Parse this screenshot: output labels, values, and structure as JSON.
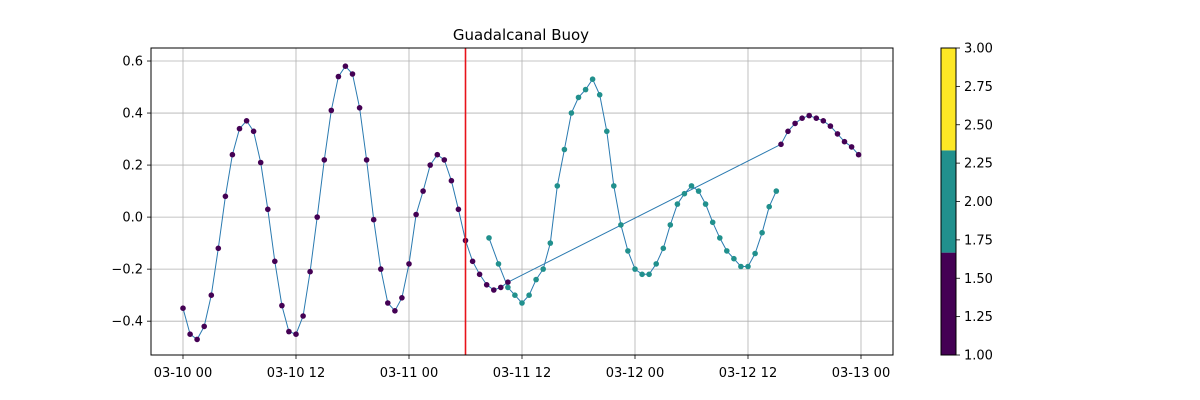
{
  "chart_data": {
    "type": "scatter",
    "title": "Guadalcanal Buoy",
    "xlabel": "",
    "ylabel": "",
    "x_range": [
      "2025-03-10T00:00",
      "2025-03-13T00:00"
    ],
    "x_ticks": [
      {
        "value": "2025-03-10T00:00",
        "label": "03-10 00"
      },
      {
        "value": "2025-03-10T12:00",
        "label": "03-10 12"
      },
      {
        "value": "2025-03-11T00:00",
        "label": "03-11 00"
      },
      {
        "value": "2025-03-11T12:00",
        "label": "03-11 12"
      },
      {
        "value": "2025-03-12T00:00",
        "label": "03-12 00"
      },
      {
        "value": "2025-03-12T12:00",
        "label": "03-12 12"
      },
      {
        "value": "2025-03-13T00:00",
        "label": "03-13 00"
      }
    ],
    "ylim": [
      -0.53,
      0.65
    ],
    "y_ticks": [
      -0.4,
      -0.2,
      0.0,
      0.2,
      0.4,
      0.6
    ],
    "y_tick_labels": [
      "−0.4",
      "−0.2",
      "0.0",
      "0.2",
      "0.4",
      "0.6"
    ],
    "grid": true,
    "vertical_line": {
      "x": "2025-03-11T06:00",
      "color": "#e8131a"
    },
    "line_color": "#2a7ab0",
    "colorbar": {
      "range": [
        1.0,
        3.0
      ],
      "ticks": [
        1.0,
        1.25,
        1.5,
        1.75,
        2.0,
        2.25,
        2.5,
        2.75,
        3.0
      ],
      "tick_labels": [
        "1.00",
        "1.25",
        "1.50",
        "1.75",
        "2.00",
        "2.25",
        "2.50",
        "2.75",
        "3.00"
      ],
      "bands": [
        {
          "from": 1.0,
          "to": 1.667,
          "color": "#440154"
        },
        {
          "from": 1.667,
          "to": 2.333,
          "color": "#21908d"
        },
        {
          "from": 2.333,
          "to": 3.0,
          "color": "#fde725"
        }
      ]
    },
    "series": [
      {
        "x": [
          "2025-03-10T00:00",
          "2025-03-10T00:45",
          "2025-03-10T01:30",
          "2025-03-10T02:15",
          "2025-03-10T03:00",
          "2025-03-10T03:45",
          "2025-03-10T04:30",
          "2025-03-10T05:15",
          "2025-03-10T06:00",
          "2025-03-10T06:45",
          "2025-03-10T07:30",
          "2025-03-10T08:15",
          "2025-03-10T09:00",
          "2025-03-10T09:45",
          "2025-03-10T10:30",
          "2025-03-10T11:15",
          "2025-03-10T12:00",
          "2025-03-10T12:45",
          "2025-03-10T13:30",
          "2025-03-10T14:15",
          "2025-03-10T15:00",
          "2025-03-10T15:45",
          "2025-03-10T16:30",
          "2025-03-10T17:15",
          "2025-03-10T18:00",
          "2025-03-10T18:45",
          "2025-03-10T19:30",
          "2025-03-10T20:15",
          "2025-03-10T21:00",
          "2025-03-10T21:45",
          "2025-03-10T22:30",
          "2025-03-10T23:15",
          "2025-03-11T00:00",
          "2025-03-11T00:45",
          "2025-03-11T01:30",
          "2025-03-11T02:15",
          "2025-03-11T03:00",
          "2025-03-11T03:45",
          "2025-03-11T04:30",
          "2025-03-11T05:15",
          "2025-03-11T06:00",
          "2025-03-11T06:45",
          "2025-03-11T07:30",
          "2025-03-11T08:15",
          "2025-03-11T09:00",
          "2025-03-11T09:45",
          "2025-03-11T10:30",
          "2025-03-12T15:30",
          "2025-03-12T16:15",
          "2025-03-12T17:00",
          "2025-03-12T17:45",
          "2025-03-12T18:30",
          "2025-03-12T19:15",
          "2025-03-12T20:00",
          "2025-03-12T20:45",
          "2025-03-12T21:30",
          "2025-03-12T22:15",
          "2025-03-12T23:00",
          "2025-03-12T23:45"
        ],
        "y": [
          -0.35,
          -0.45,
          -0.47,
          -0.42,
          -0.3,
          -0.12,
          0.08,
          0.24,
          0.34,
          0.37,
          0.33,
          0.21,
          0.03,
          -0.17,
          -0.34,
          -0.44,
          -0.45,
          -0.38,
          -0.21,
          0.0,
          0.22,
          0.41,
          0.54,
          0.58,
          0.55,
          0.42,
          0.22,
          -0.01,
          -0.2,
          -0.33,
          -0.36,
          -0.31,
          -0.18,
          0.01,
          0.1,
          0.2,
          0.24,
          0.22,
          0.14,
          0.03,
          -0.09,
          -0.17,
          -0.22,
          -0.26,
          -0.28,
          -0.27,
          -0.25,
          0.28,
          0.33,
          0.36,
          0.38,
          0.39,
          0.38,
          0.37,
          0.35,
          0.32,
          0.29,
          0.27,
          0.24
        ],
        "color_value": 1.0
      },
      {
        "x": [
          "2025-03-11T08:30",
          "2025-03-11T09:30",
          "2025-03-11T10:30",
          "2025-03-11T11:15",
          "2025-03-11T12:00",
          "2025-03-11T12:45",
          "2025-03-11T13:30",
          "2025-03-11T14:15",
          "2025-03-11T15:00",
          "2025-03-11T15:45",
          "2025-03-11T16:30",
          "2025-03-11T17:15",
          "2025-03-11T18:00",
          "2025-03-11T18:45",
          "2025-03-11T19:30",
          "2025-03-11T20:15",
          "2025-03-11T21:00",
          "2025-03-11T21:45",
          "2025-03-11T22:30",
          "2025-03-11T23:15",
          "2025-03-12T00:00",
          "2025-03-12T00:45",
          "2025-03-12T01:30",
          "2025-03-12T02:15",
          "2025-03-12T03:00",
          "2025-03-12T03:45",
          "2025-03-12T04:30",
          "2025-03-12T05:15",
          "2025-03-12T06:00",
          "2025-03-12T06:45",
          "2025-03-12T07:30",
          "2025-03-12T08:15",
          "2025-03-12T09:00",
          "2025-03-12T09:45",
          "2025-03-12T10:30",
          "2025-03-12T11:15",
          "2025-03-12T12:00",
          "2025-03-12T12:45",
          "2025-03-12T13:30",
          "2025-03-12T14:15",
          "2025-03-12T15:00"
        ],
        "y": [
          -0.08,
          -0.18,
          -0.27,
          -0.3,
          -0.33,
          -0.3,
          -0.24,
          -0.2,
          -0.1,
          0.12,
          0.26,
          0.4,
          0.46,
          0.49,
          0.53,
          0.47,
          0.33,
          0.12,
          -0.03,
          -0.13,
          -0.2,
          -0.22,
          -0.22,
          -0.18,
          -0.12,
          -0.03,
          0.05,
          0.09,
          0.12,
          0.1,
          0.05,
          -0.02,
          -0.08,
          -0.13,
          -0.16,
          -0.19,
          -0.19,
          -0.14,
          -0.06,
          0.04,
          0.1
        ],
        "color_value": 2.0
      }
    ]
  }
}
